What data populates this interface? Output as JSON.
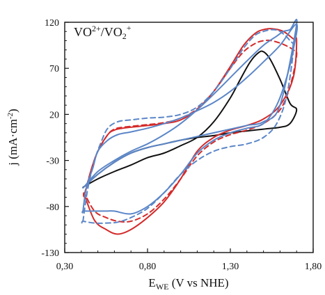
{
  "chart_data": {
    "type": "line",
    "annotation": {
      "base": "VO",
      "sup1": "2+",
      "mid": "/VO",
      "sub2": "2",
      "sup2": "+"
    },
    "xlabel": {
      "base": "E",
      "sub": "WE",
      "rest": " (V vs NHE)"
    },
    "ylabel": {
      "pre": "j (mA·cm",
      "sup": "-2",
      "post": ")"
    },
    "xlim": [
      0.3,
      1.8
    ],
    "ylim": [
      -130,
      120
    ],
    "x_ticks": [
      0.3,
      0.8,
      1.3,
      1.8
    ],
    "x_tick_labels": [
      "0,30",
      "0,80",
      "1,30",
      "1,80"
    ],
    "y_ticks": [
      120,
      70,
      20,
      -30,
      -80,
      -130
    ],
    "y_tick_labels": [
      "120",
      "70",
      "20",
      "-30",
      "-80",
      "-130"
    ],
    "grid": false,
    "colors": {
      "black": "#111111",
      "red": "#d42a2a",
      "blue": "#5b86c8"
    },
    "series": [
      {
        "color": "black",
        "dash": false,
        "x": [
          0.42,
          0.5,
          0.6,
          0.7,
          0.8,
          0.9,
          1.0,
          1.1,
          1.2,
          1.3,
          1.36,
          1.42,
          1.47,
          1.5,
          1.54,
          1.6,
          1.66,
          1.7,
          1.66,
          1.6,
          1.5,
          1.4,
          1.3,
          1.2,
          1.1,
          1.0,
          0.9,
          0.8,
          0.7,
          0.6,
          0.5,
          0.42
        ],
        "y": [
          -58,
          -50,
          -42,
          -35,
          -27,
          -22,
          -14,
          -5,
          12,
          38,
          58,
          77,
          87,
          88,
          80,
          58,
          32,
          25,
          10,
          6,
          4,
          2,
          0,
          -3,
          -5,
          -8,
          -12,
          -16,
          -22,
          -32,
          -45,
          -58
        ]
      },
      {
        "color": "red",
        "dash": false,
        "x": [
          0.42,
          0.46,
          0.5,
          0.56,
          0.6,
          0.65,
          0.75,
          0.9,
          1.0,
          1.1,
          1.2,
          1.3,
          1.38,
          1.45,
          1.5,
          1.55,
          1.62,
          1.68,
          1.7,
          1.68,
          1.6,
          1.5,
          1.4,
          1.3,
          1.2,
          1.1,
          1.0,
          0.9,
          0.8,
          0.7,
          0.62,
          0.55,
          0.48,
          0.42
        ],
        "y": [
          -68,
          -40,
          -20,
          -2,
          3,
          5,
          7,
          10,
          14,
          25,
          45,
          72,
          95,
          108,
          112,
          113,
          110,
          102,
          100,
          60,
          30,
          15,
          8,
          3,
          -5,
          -20,
          -50,
          -75,
          -92,
          -105,
          -110,
          -105,
          -95,
          -68
        ]
      },
      {
        "color": "red",
        "dash": true,
        "x": [
          0.42,
          0.46,
          0.5,
          0.56,
          0.6,
          0.65,
          0.75,
          0.9,
          1.0,
          1.1,
          1.2,
          1.3,
          1.38,
          1.45,
          1.5,
          1.55,
          1.62,
          1.68,
          1.7,
          1.66,
          1.6,
          1.5,
          1.4,
          1.3,
          1.2,
          1.1,
          1.0,
          0.9,
          0.8,
          0.7,
          0.62,
          0.55,
          0.48,
          0.42
        ],
        "y": [
          -66,
          -40,
          -20,
          -2,
          4,
          6,
          8,
          11,
          16,
          26,
          45,
          70,
          88,
          97,
          100,
          100,
          96,
          90,
          84,
          50,
          25,
          10,
          3,
          -2,
          -10,
          -25,
          -50,
          -72,
          -88,
          -96,
          -96,
          -92,
          -85,
          -66
        ]
      },
      {
        "color": "blue",
        "dash": false,
        "x": [
          0.41,
          0.43,
          0.47,
          0.5,
          0.56,
          0.62,
          0.7,
          0.8,
          0.9,
          1.0,
          1.1,
          1.2,
          1.3,
          1.4,
          1.5,
          1.6,
          1.7,
          1.68,
          1.64,
          1.58,
          1.5,
          1.4,
          1.3,
          1.2,
          1.1,
          1.0,
          0.9,
          0.8,
          0.7,
          0.6,
          0.55,
          0.5,
          0.45,
          0.41
        ],
        "y": [
          -85,
          -60,
          -38,
          -20,
          -8,
          -2,
          1,
          5,
          10,
          16,
          24,
          33,
          45,
          60,
          77,
          95,
          118,
          90,
          60,
          30,
          10,
          5,
          0,
          -8,
          -22,
          -45,
          -65,
          -80,
          -88,
          -85,
          -85,
          -85,
          -85,
          -85
        ]
      },
      {
        "color": "blue",
        "dash": false,
        "x": [
          0.42,
          0.5,
          0.6,
          0.7,
          0.8,
          0.9,
          1.0,
          1.1,
          1.2,
          1.3,
          1.4,
          1.5,
          1.58,
          1.62,
          1.66,
          1.7,
          1.6,
          1.5,
          1.4,
          1.3,
          1.2,
          1.1,
          1.0,
          0.9,
          0.8,
          0.7,
          0.6,
          0.5,
          0.42
        ],
        "y": [
          -58,
          -42,
          -30,
          -20,
          -12,
          -2,
          10,
          25,
          42,
          60,
          78,
          95,
          105,
          110,
          112,
          118,
          30,
          12,
          8,
          4,
          0,
          -4,
          -8,
          -12,
          -16,
          -22,
          -32,
          -45,
          -58
        ]
      },
      {
        "color": "blue",
        "dash": true,
        "x": [
          0.41,
          0.44,
          0.48,
          0.52,
          0.56,
          0.62,
          0.7,
          0.8,
          0.9,
          1.0,
          1.1,
          1.2,
          1.3,
          1.38,
          1.45,
          1.5,
          1.55,
          1.6,
          1.66,
          1.68,
          1.64,
          1.58,
          1.5,
          1.4,
          1.3,
          1.2,
          1.1,
          1.0,
          0.9,
          0.8,
          0.7,
          0.62,
          0.55,
          0.48,
          0.41
        ],
        "y": [
          -96,
          -60,
          -30,
          -10,
          5,
          12,
          14,
          16,
          17,
          20,
          28,
          45,
          70,
          92,
          106,
          110,
          112,
          110,
          100,
          90,
          40,
          10,
          -5,
          -12,
          -15,
          -20,
          -30,
          -45,
          -65,
          -82,
          -92,
          -97,
          -98,
          -98,
          -96
        ]
      }
    ]
  }
}
